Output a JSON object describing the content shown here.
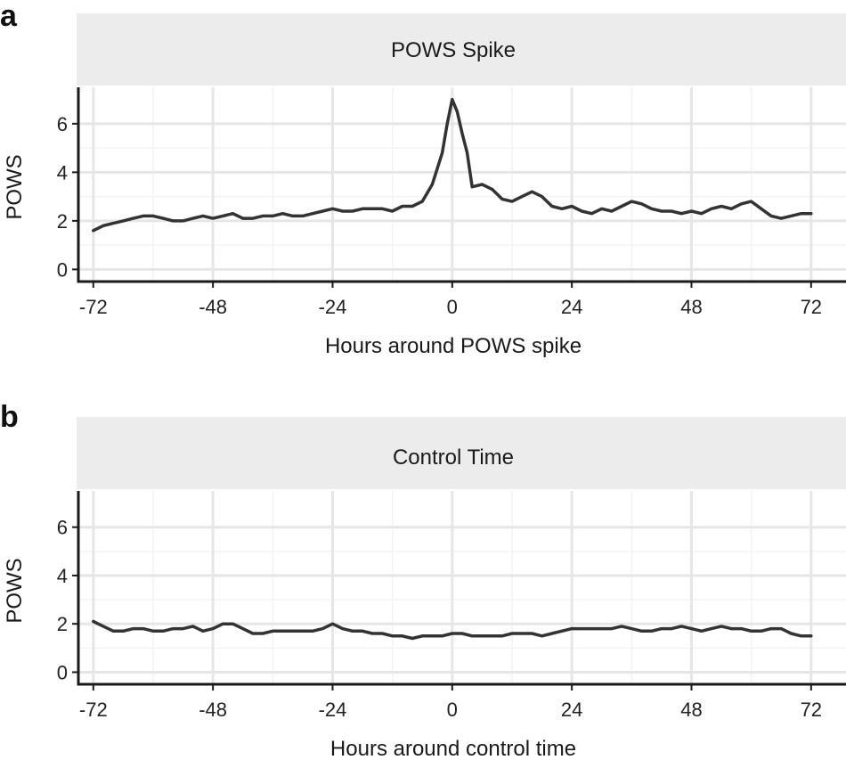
{
  "figure": {
    "panels": [
      {
        "letter": "a",
        "strip_title": "POWS Spike"
      },
      {
        "letter": "b",
        "strip_title": "Control Time"
      }
    ]
  },
  "chart_data": [
    {
      "type": "line",
      "title": "POWS Spike",
      "xlabel": "Hours around POWS spike",
      "ylabel": "POWS",
      "xlim": [
        -75,
        79
      ],
      "ylim": [
        -0.5,
        7.5
      ],
      "xticks": [
        -72,
        -48,
        -24,
        0,
        24,
        48,
        72
      ],
      "yticks": [
        0,
        2,
        4,
        6
      ],
      "grid": true,
      "series": [
        {
          "x": [
            -72,
            -70,
            -68,
            -66,
            -64,
            -62,
            -60,
            -58,
            -56,
            -54,
            -52,
            -50,
            -48,
            -46,
            -44,
            -42,
            -40,
            -38,
            -36,
            -34,
            -32,
            -30,
            -28,
            -26,
            -24,
            -22,
            -20,
            -18,
            -16,
            -14,
            -12,
            -10,
            -8,
            -6,
            -4,
            -2,
            -1,
            0,
            1,
            2,
            3,
            4,
            6,
            8,
            10,
            12,
            14,
            16,
            18,
            20,
            22,
            24,
            26,
            28,
            30,
            32,
            34,
            36,
            38,
            40,
            42,
            44,
            46,
            48,
            50,
            52,
            54,
            56,
            58,
            60,
            62,
            64,
            66,
            68,
            70,
            72
          ],
          "y": [
            1.6,
            1.8,
            1.9,
            2.0,
            2.1,
            2.2,
            2.2,
            2.1,
            2.0,
            2.0,
            2.1,
            2.2,
            2.1,
            2.2,
            2.3,
            2.1,
            2.1,
            2.2,
            2.2,
            2.3,
            2.2,
            2.2,
            2.3,
            2.4,
            2.5,
            2.4,
            2.4,
            2.5,
            2.5,
            2.5,
            2.4,
            2.6,
            2.6,
            2.8,
            3.5,
            4.8,
            6.0,
            7.0,
            6.5,
            5.6,
            4.8,
            3.4,
            3.5,
            3.3,
            2.9,
            2.8,
            3.0,
            3.2,
            3.0,
            2.6,
            2.5,
            2.6,
            2.4,
            2.3,
            2.5,
            2.4,
            2.6,
            2.8,
            2.7,
            2.5,
            2.4,
            2.4,
            2.3,
            2.4,
            2.3,
            2.5,
            2.6,
            2.5,
            2.7,
            2.8,
            2.5,
            2.2,
            2.1,
            2.2,
            2.3,
            2.3
          ]
        }
      ]
    },
    {
      "type": "line",
      "title": "Control Time",
      "xlabel": "Hours around control time",
      "ylabel": "POWS",
      "xlim": [
        -75,
        79
      ],
      "ylim": [
        -0.5,
        7.5
      ],
      "xticks": [
        -72,
        -48,
        -24,
        0,
        24,
        48,
        72
      ],
      "yticks": [
        0,
        2,
        4,
        6
      ],
      "grid": true,
      "series": [
        {
          "x": [
            -72,
            -70,
            -68,
            -66,
            -64,
            -62,
            -60,
            -58,
            -56,
            -54,
            -52,
            -50,
            -48,
            -46,
            -44,
            -42,
            -40,
            -38,
            -36,
            -34,
            -32,
            -30,
            -28,
            -26,
            -24,
            -22,
            -20,
            -18,
            -16,
            -14,
            -12,
            -10,
            -8,
            -6,
            -4,
            -2,
            0,
            2,
            4,
            6,
            8,
            10,
            12,
            14,
            16,
            18,
            20,
            22,
            24,
            26,
            28,
            30,
            32,
            34,
            36,
            38,
            40,
            42,
            44,
            46,
            48,
            50,
            52,
            54,
            56,
            58,
            60,
            62,
            64,
            66,
            68,
            70,
            72
          ],
          "y": [
            2.1,
            1.9,
            1.7,
            1.7,
            1.8,
            1.8,
            1.7,
            1.7,
            1.8,
            1.8,
            1.9,
            1.7,
            1.8,
            2.0,
            2.0,
            1.8,
            1.6,
            1.6,
            1.7,
            1.7,
            1.7,
            1.7,
            1.7,
            1.8,
            2.0,
            1.8,
            1.7,
            1.7,
            1.6,
            1.6,
            1.5,
            1.5,
            1.4,
            1.5,
            1.5,
            1.5,
            1.6,
            1.6,
            1.5,
            1.5,
            1.5,
            1.5,
            1.6,
            1.6,
            1.6,
            1.5,
            1.6,
            1.7,
            1.8,
            1.8,
            1.8,
            1.8,
            1.8,
            1.9,
            1.8,
            1.7,
            1.7,
            1.8,
            1.8,
            1.9,
            1.8,
            1.7,
            1.8,
            1.9,
            1.8,
            1.8,
            1.7,
            1.7,
            1.8,
            1.8,
            1.6,
            1.5,
            1.5
          ]
        }
      ]
    }
  ]
}
